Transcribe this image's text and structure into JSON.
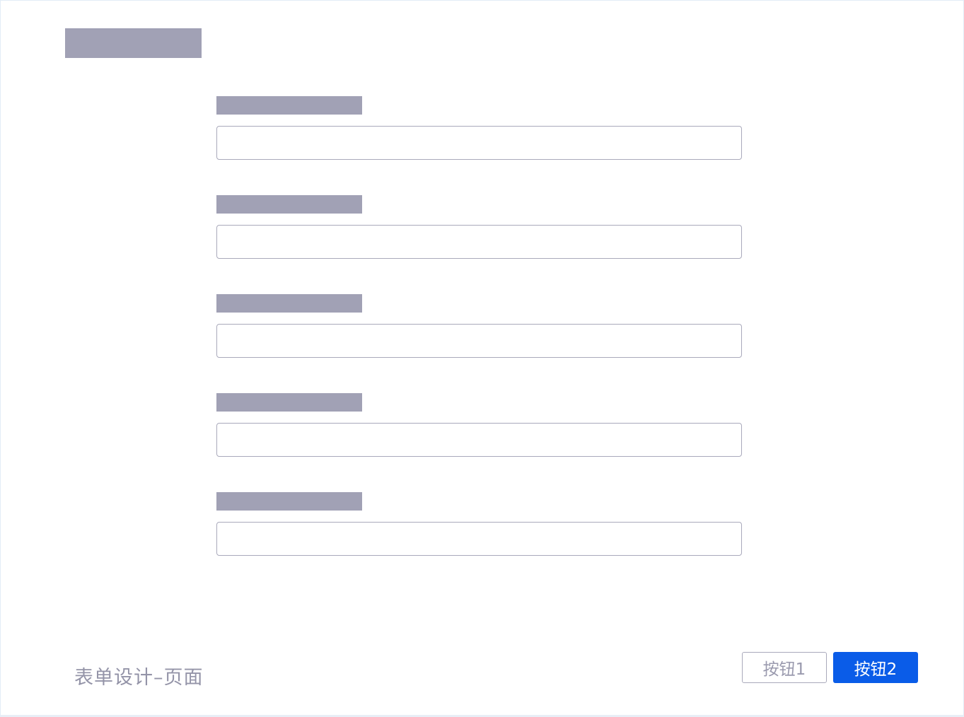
{
  "footer": {
    "page_title": "表单设计–页面"
  },
  "buttons": {
    "button1_label": "按钮1",
    "button2_label": "按钮2"
  },
  "form": {
    "fields": [
      {
        "value": ""
      },
      {
        "value": ""
      },
      {
        "value": ""
      },
      {
        "value": ""
      },
      {
        "value": ""
      }
    ]
  },
  "colors": {
    "accent": "#0a5ce8",
    "placeholder_block": "#a1a1b5"
  }
}
